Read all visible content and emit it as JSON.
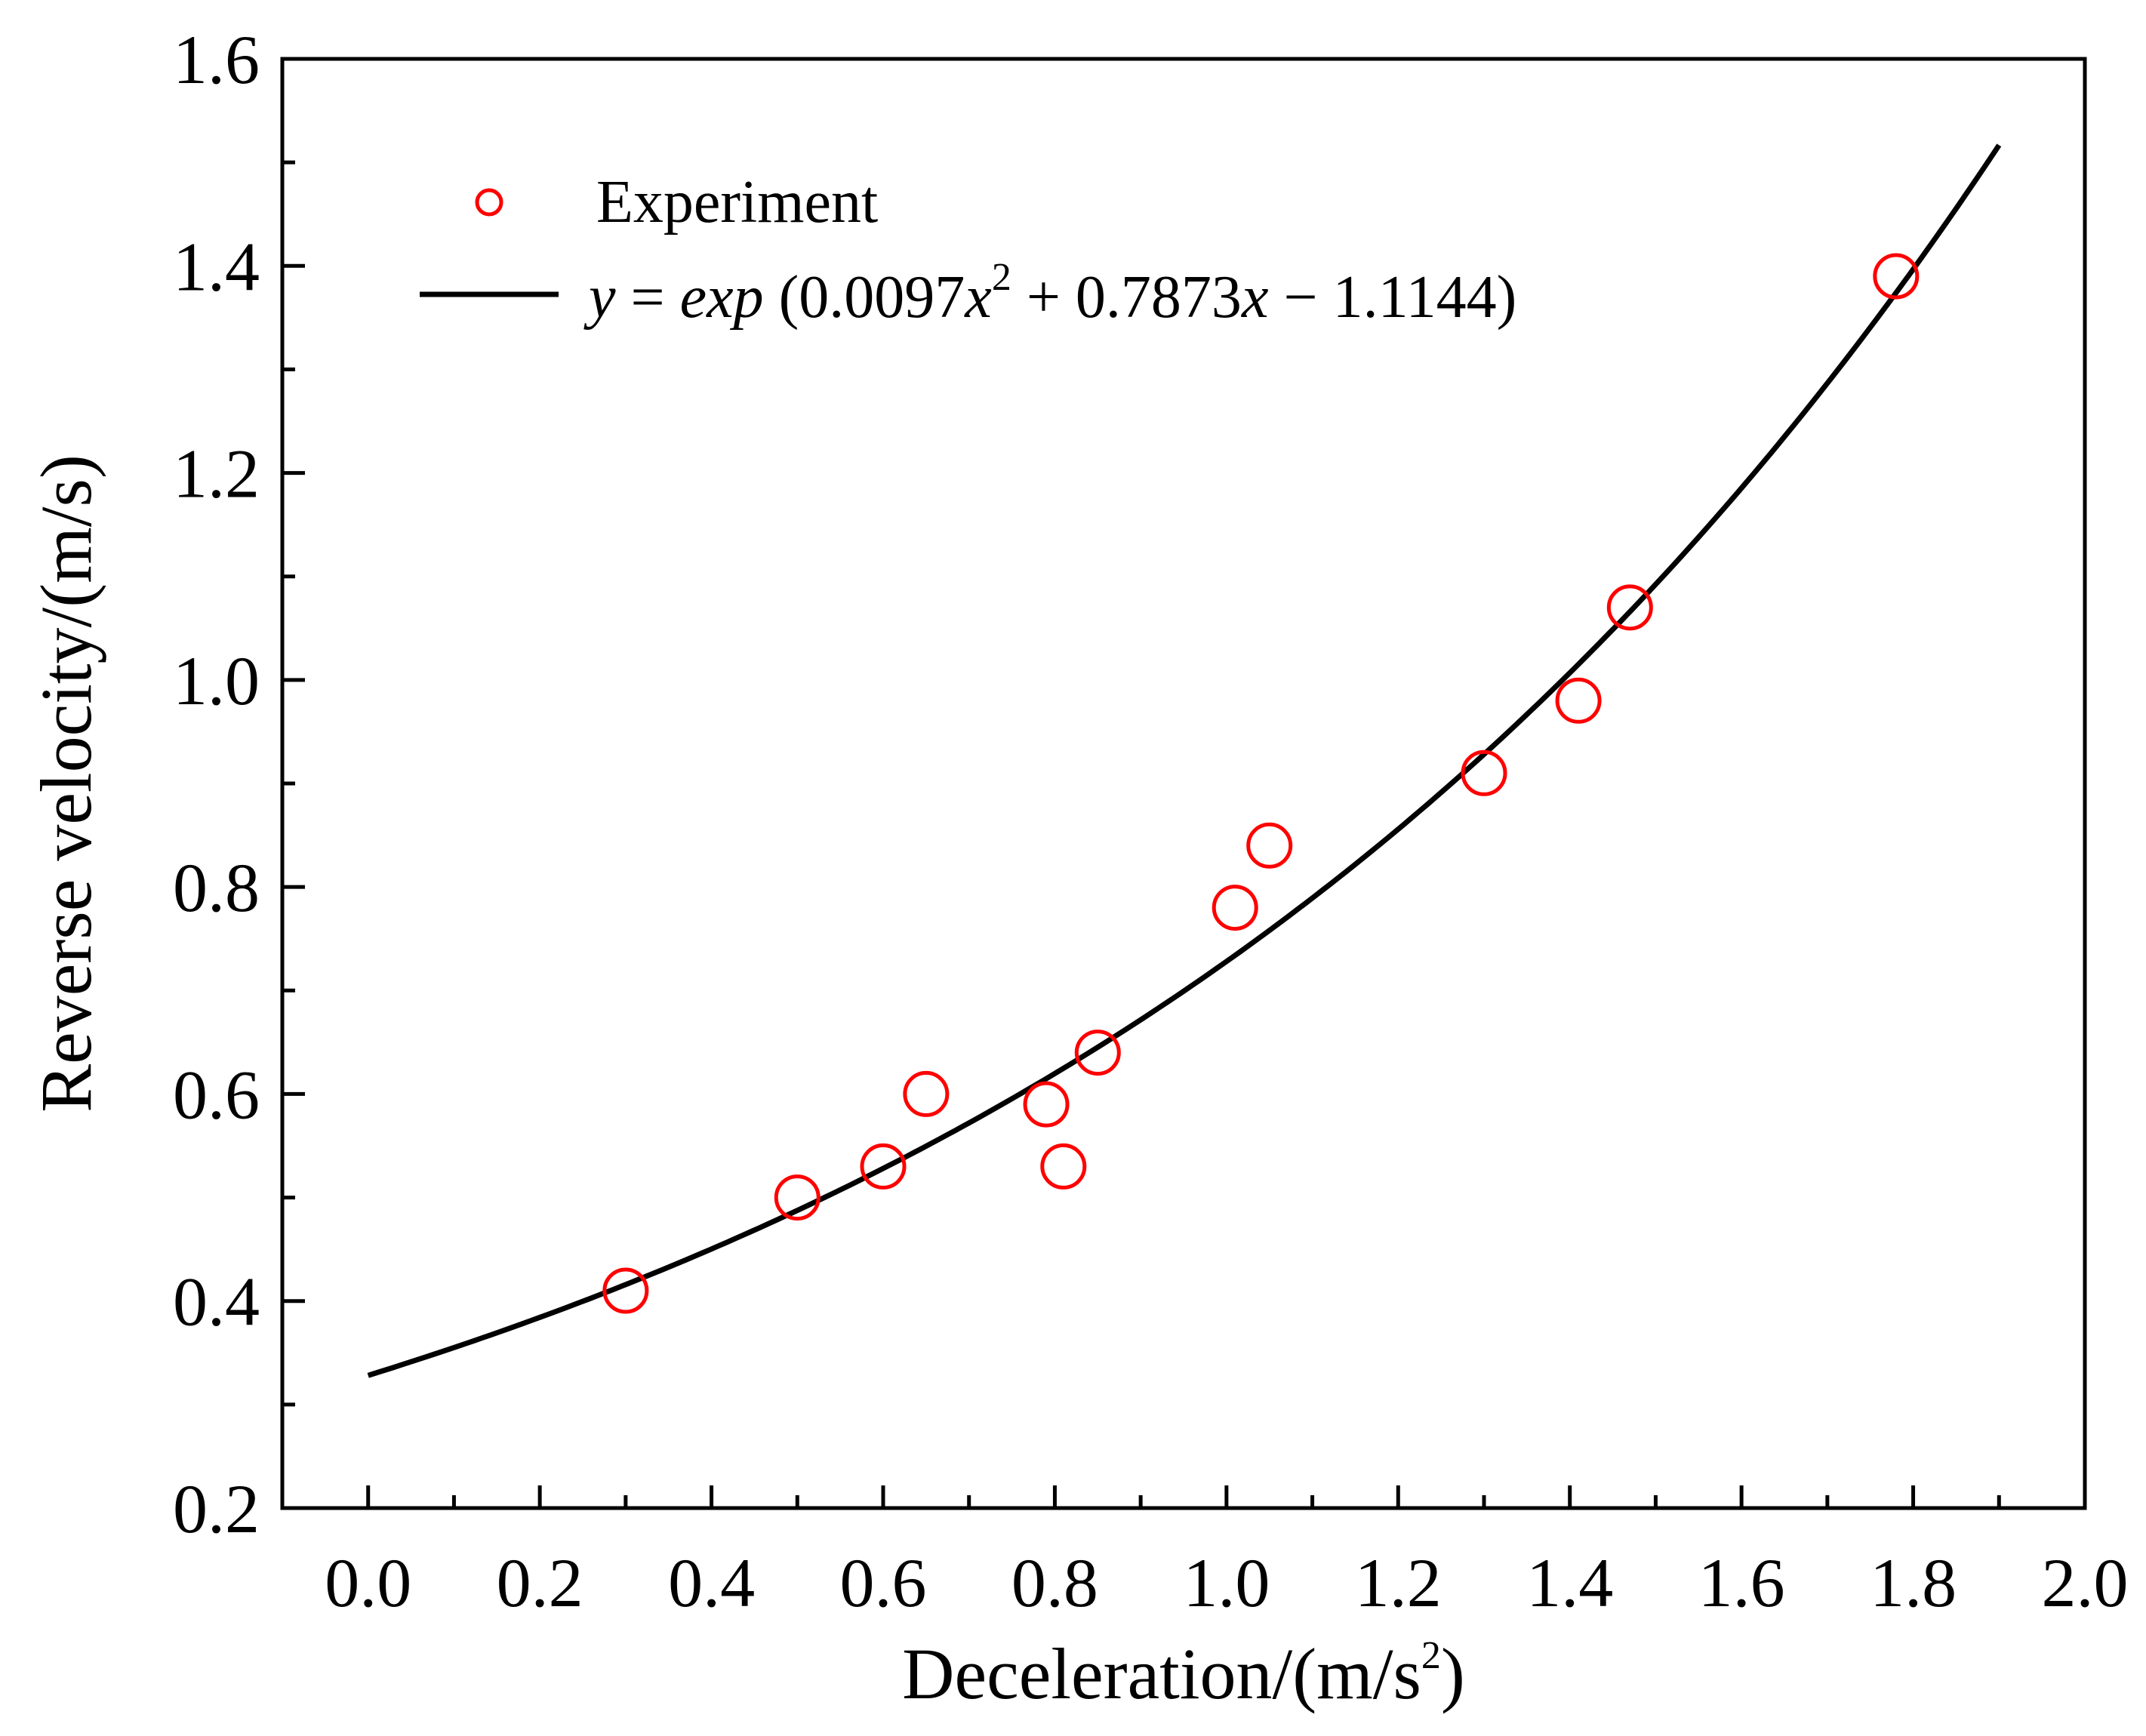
{
  "chart_data": {
    "type": "scatter",
    "title": "",
    "xlabel": {
      "base": "Deceleration/(m/s",
      "sup": "2",
      "tail": ")"
    },
    "ylabel": "Reverse velocity/(m/s)",
    "xlim": [
      -0.1,
      2.0
    ],
    "ylim": [
      0.2,
      1.6
    ],
    "x_ticks": [
      0.0,
      0.2,
      0.4,
      0.6,
      0.8,
      1.0,
      1.2,
      1.4,
      1.6,
      1.8,
      2.0
    ],
    "x_tick_labels": [
      "0.0",
      "0.2",
      "0.4",
      "0.6",
      "0.8",
      "1.0",
      "1.2",
      "1.4",
      "1.6",
      "1.8",
      "2.0"
    ],
    "y_ticks": [
      0.2,
      0.4,
      0.6,
      0.8,
      1.0,
      1.2,
      1.4,
      1.6
    ],
    "y_tick_labels": [
      "0.2",
      "0.4",
      "0.6",
      "0.8",
      "1.0",
      "1.2",
      "1.4",
      "1.6"
    ],
    "grid": false,
    "legend_position": "top-left",
    "series": [
      {
        "name": "Experiment",
        "kind": "scatter",
        "marker": "open-circle",
        "color": "#ff0000",
        "x": [
          0.3,
          0.5,
          0.6,
          0.65,
          0.79,
          0.81,
          0.85,
          1.01,
          1.05,
          1.3,
          1.41,
          1.47,
          1.78
        ],
        "y": [
          0.41,
          0.5,
          0.53,
          0.6,
          0.59,
          0.53,
          0.64,
          0.78,
          0.84,
          0.91,
          0.98,
          1.07,
          1.39
        ]
      },
      {
        "name": "fit",
        "kind": "line",
        "color": "#000000",
        "equation": {
          "a": 0.0097,
          "b": 0.7873,
          "c": -1.1144
        },
        "x_range": [
          0.0,
          1.9
        ],
        "legend_label": {
          "y": "y",
          "eq": " = ",
          "exp": "exp",
          "open": " (0.0097",
          "x1": "x",
          "sq": "2",
          "mid": " + 0.7873",
          "x2": "x",
          "end": "  − 1.1144)"
        }
      }
    ]
  }
}
